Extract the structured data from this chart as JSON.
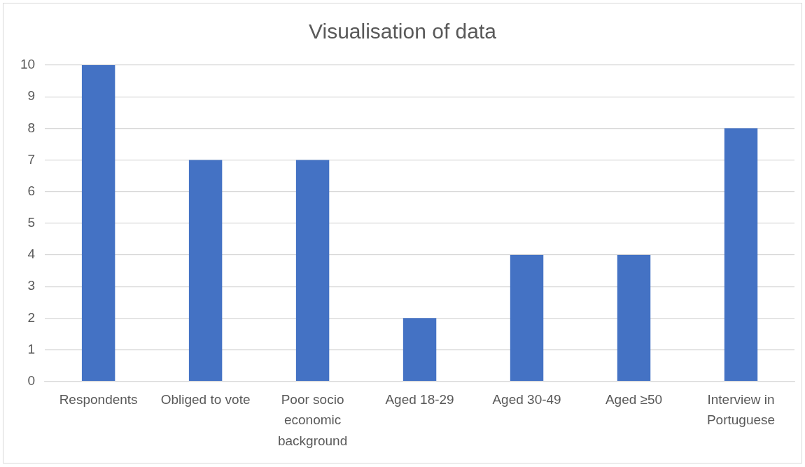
{
  "chart_data": {
    "type": "bar",
    "title": "Visualisation of data",
    "categories": [
      "Respondents",
      "Obliged to vote",
      "Poor socio economic background",
      "Aged 18-29",
      "Aged 30-49",
      "Aged ≥50",
      "Interview in Portuguese"
    ],
    "values": [
      10,
      7,
      7,
      2,
      4,
      4,
      8
    ],
    "color": "#4472c4",
    "ylim": [
      0,
      10
    ],
    "yticks": [
      0,
      1,
      2,
      3,
      4,
      5,
      6,
      7,
      8,
      9,
      10
    ],
    "grid": "y",
    "legend": false
  }
}
